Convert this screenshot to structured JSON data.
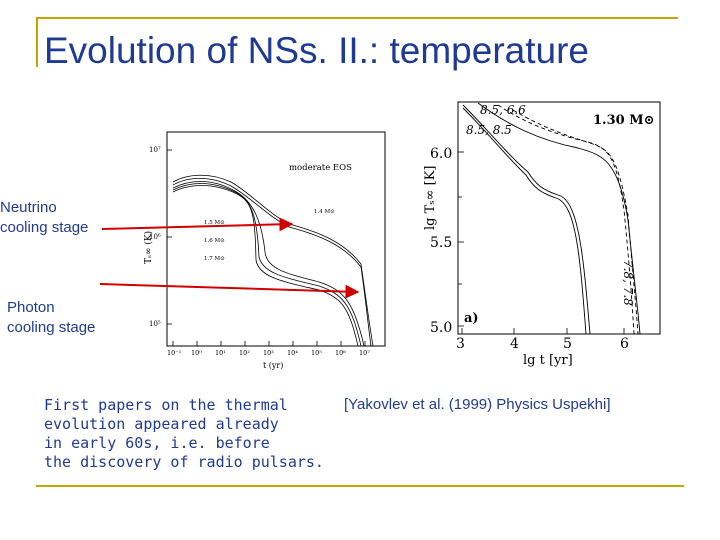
{
  "slide": {
    "title": "Evolution of NSs. II.: temperature",
    "label_neutrino": [
      "Neutrino",
      "cooling stage"
    ],
    "label_photon": [
      "Photon",
      "cooling stage"
    ],
    "caption": "First papers on the thermal\nevolution appeared already\nin early 60s, i.e. before\nthe discovery of radio pulsars.",
    "reference": "[Yakovlev et al. (1999) Physics Uspekhi]"
  },
  "left_plot": {
    "eos_label": "moderate EOS",
    "mass_labels": [
      "1.4 M⊙",
      "1.5 M⊙",
      "1.6 M⊙",
      "1.7 M⊙"
    ],
    "ytick_labels": [
      "10⁷",
      "10⁶",
      "10⁵"
    ],
    "xtick_labels": [
      "10⁻¹",
      "10⁰",
      "10¹",
      "10²",
      "10³",
      "10⁴",
      "10⁵",
      "10⁶",
      "10⁷"
    ],
    "ylabel": "Tₛ∞ (K)",
    "xlabel": "t (yr)"
  },
  "right_plot": {
    "mass_label": "1.30 M⊙",
    "curve_labels_top": [
      "8.5, 6.6",
      "8.5, 8.5"
    ],
    "curve_labels_right": "7.8, 7.8",
    "panel_label": "a)",
    "ytick_labels": [
      "6.0",
      "5.5",
      "5.0"
    ],
    "xtick_labels": [
      "3",
      "4",
      "5",
      "6"
    ],
    "ylabel": "lg Tₛ∞ [K]",
    "xlabel": "lg t  [yr]"
  },
  "colors": {
    "title": "#1f3a93",
    "accent_line": "#c9a400",
    "arrow": "#d00000"
  }
}
